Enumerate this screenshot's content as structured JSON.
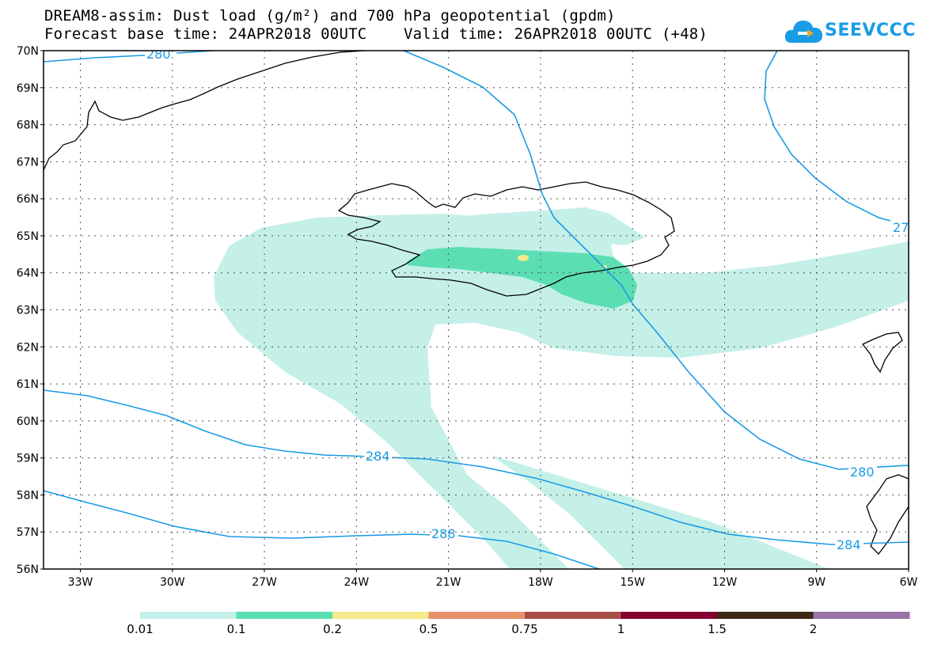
{
  "header": {
    "title_line1": "DREAM8-assim: Dust load (g/m²) and 700 hPa geopotential (gpdm)",
    "forecast_base": "Forecast base time: 24APR2018 00UTC",
    "valid_time": "Valid time: 26APR2018 00UTC (+48)"
  },
  "logo": {
    "text": "SEEVCCC",
    "icon": "cloud-icon",
    "color": "#1a9be6"
  },
  "map": {
    "lat_labels": [
      "70N",
      "69N",
      "68N",
      "67N",
      "66N",
      "65N",
      "64N",
      "63N",
      "62N",
      "61N",
      "60N",
      "59N",
      "58N",
      "57N",
      "56N"
    ],
    "lon_labels": [
      "33W",
      "30W",
      "27W",
      "24W",
      "21W",
      "18W",
      "15W",
      "12W",
      "9W",
      "6W"
    ],
    "lat_range": [
      56,
      70
    ],
    "lon_range": [
      -34.2,
      -6
    ],
    "contour_labels": [
      "280",
      "27",
      "284",
      "280",
      "288",
      "284"
    ],
    "contour_color": "#1a9be6",
    "grid": "dotted"
  },
  "colorbar": {
    "labels": [
      "0.01",
      "0.1",
      "0.2",
      "0.5",
      "0.75",
      "1",
      "1.5",
      "2"
    ],
    "colors": [
      "#c4f0e8",
      "#5cdeb3",
      "#f6ea8c",
      "#e8926a",
      "#a84e46",
      "#840030",
      "#3c2a14",
      "#9a72a6"
    ]
  }
}
